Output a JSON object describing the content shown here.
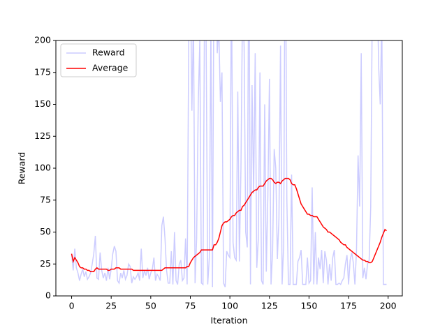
{
  "chart_data": {
    "type": "line",
    "xlabel": "Iteration",
    "ylabel": "Reward",
    "x": [
      0,
      1,
      2,
      3,
      4,
      5,
      6,
      7,
      8,
      9,
      10,
      11,
      12,
      13,
      14,
      15,
      16,
      17,
      18,
      19,
      20,
      21,
      22,
      23,
      24,
      25,
      26,
      27,
      28,
      29,
      30,
      31,
      32,
      33,
      34,
      35,
      36,
      37,
      38,
      39,
      40,
      41,
      42,
      43,
      44,
      45,
      46,
      47,
      48,
      49,
      50,
      51,
      52,
      53,
      54,
      55,
      56,
      57,
      58,
      59,
      60,
      61,
      62,
      63,
      64,
      65,
      66,
      67,
      68,
      69,
      70,
      71,
      72,
      73,
      74,
      75,
      76,
      77,
      78,
      79,
      80,
      81,
      82,
      83,
      84,
      85,
      86,
      87,
      88,
      89,
      90,
      91,
      92,
      93,
      94,
      95,
      96,
      97,
      98,
      99,
      100,
      101,
      102,
      103,
      104,
      105,
      106,
      107,
      108,
      109,
      110,
      111,
      112,
      113,
      114,
      115,
      116,
      117,
      118,
      119,
      120,
      121,
      122,
      123,
      124,
      125,
      126,
      127,
      128,
      129,
      130,
      131,
      132,
      133,
      134,
      135,
      136,
      137,
      138,
      139,
      140,
      141,
      142,
      143,
      144,
      145,
      146,
      147,
      148,
      149,
      150,
      151,
      152,
      153,
      154,
      155,
      156,
      157,
      158,
      159,
      160,
      161,
      162,
      163,
      164,
      165,
      166,
      167,
      168,
      169,
      170,
      171,
      172,
      173,
      174,
      175,
      176,
      177,
      178,
      179,
      180,
      181,
      182,
      183,
      184,
      185,
      186,
      187,
      188,
      189,
      190,
      191,
      192,
      193,
      194,
      195,
      196,
      197,
      198,
      199
    ],
    "series": [
      {
        "name": "Reward",
        "color": "#ccccff",
        "values": [
          33,
          20,
          37,
          22,
          18,
          12,
          17,
          21,
          15,
          19,
          13,
          15,
          18,
          25,
          33,
          47,
          14,
          13,
          34,
          20,
          14,
          18,
          12,
          22,
          13,
          21,
          33,
          39,
          35,
          12,
          10,
          18,
          14,
          20,
          13,
          16,
          25,
          23,
          10,
          15,
          13,
          15,
          18,
          12,
          37,
          14,
          20,
          16,
          22,
          13,
          18,
          21,
          30,
          12,
          17,
          15,
          12,
          55,
          62,
          45,
          20,
          10,
          10,
          35,
          9,
          50,
          12,
          9,
          25,
          28,
          12,
          14,
          45,
          9,
          200,
          260,
          145,
          220,
          10,
          45,
          150,
          200,
          10,
          9,
          230,
          200,
          9,
          30,
          210,
          7,
          280,
          300,
          190,
          210,
          152,
          175,
          10,
          7,
          35,
          32,
          30,
          255,
          42,
          30,
          28,
          160,
          27,
          100,
          230,
          195,
          50,
          38,
          290,
          9,
          165,
          80,
          190,
          22,
          45,
          175,
          12,
          9,
          150,
          19,
          78,
          170,
          9,
          35,
          115,
          100,
          29,
          60,
          196,
          9,
          40,
          320,
          76,
          9,
          9,
          95,
          9,
          9,
          9,
          27,
          30,
          36,
          9,
          9,
          9,
          30,
          10,
          12,
          85,
          9,
          50,
          9,
          30,
          21,
          36,
          10,
          35,
          28,
          9,
          25,
          12,
          30,
          36,
          9,
          9,
          10,
          9,
          12,
          14,
          25,
          32,
          9,
          28,
          34,
          26,
          9,
          35,
          110,
          70,
          190,
          14,
          22,
          13,
          25,
          28,
          70,
          230,
          200,
          210,
          250,
          180,
          150,
          220,
          9,
          9,
          9
        ]
      },
      {
        "name": "Average",
        "color": "#ff0000",
        "values": [
          33,
          27,
          30,
          28,
          26,
          23,
          22,
          22,
          21,
          21,
          20,
          20,
          19,
          19,
          19,
          21,
          22,
          21,
          21,
          21,
          21,
          21,
          21,
          20,
          20,
          21,
          21,
          21,
          22,
          22,
          22,
          21,
          21,
          21,
          21,
          21,
          21,
          21,
          21,
          20,
          20,
          20,
          20,
          20,
          20,
          20,
          20,
          20,
          20,
          20,
          20,
          20,
          20,
          20,
          20,
          20,
          20,
          20,
          21,
          22,
          22,
          22,
          22,
          22,
          22,
          22,
          22,
          22,
          22,
          22,
          22,
          22,
          22,
          23,
          23,
          26,
          28,
          30,
          31,
          32,
          33,
          34,
          36,
          36,
          36,
          36,
          36,
          36,
          36,
          36,
          40,
          40,
          42,
          45,
          50,
          55,
          57,
          58,
          58,
          59,
          60,
          62,
          63,
          63,
          65,
          66,
          67,
          67,
          70,
          71,
          73,
          75,
          77,
          79,
          81,
          82,
          83,
          83,
          85,
          86,
          86,
          86,
          88,
          90,
          91,
          92,
          92,
          91,
          89,
          88,
          89,
          89,
          88,
          90,
          91,
          92,
          92,
          92,
          91,
          88,
          87,
          87,
          84,
          80,
          76,
          72,
          70,
          68,
          66,
          64,
          64,
          63,
          63,
          62,
          62,
          62,
          60,
          58,
          56,
          54,
          53,
          52,
          50,
          50,
          49,
          48,
          47,
          46,
          45,
          44,
          42,
          41,
          40,
          40,
          38,
          37,
          36,
          35,
          34,
          33,
          32,
          31,
          30,
          29,
          28,
          28,
          27,
          27,
          26,
          26,
          27,
          30,
          33,
          36,
          39,
          42,
          46,
          49,
          52,
          51
        ]
      }
    ],
    "xlim": [
      -9.95,
      208.95
    ],
    "xticks": [
      0,
      25,
      50,
      75,
      100,
      125,
      150,
      175,
      200
    ],
    "ylim": [
      0,
      200
    ],
    "yticks": [
      0,
      25,
      50,
      75,
      100,
      125,
      150,
      175,
      200
    ],
    "legend": "upper left"
  }
}
